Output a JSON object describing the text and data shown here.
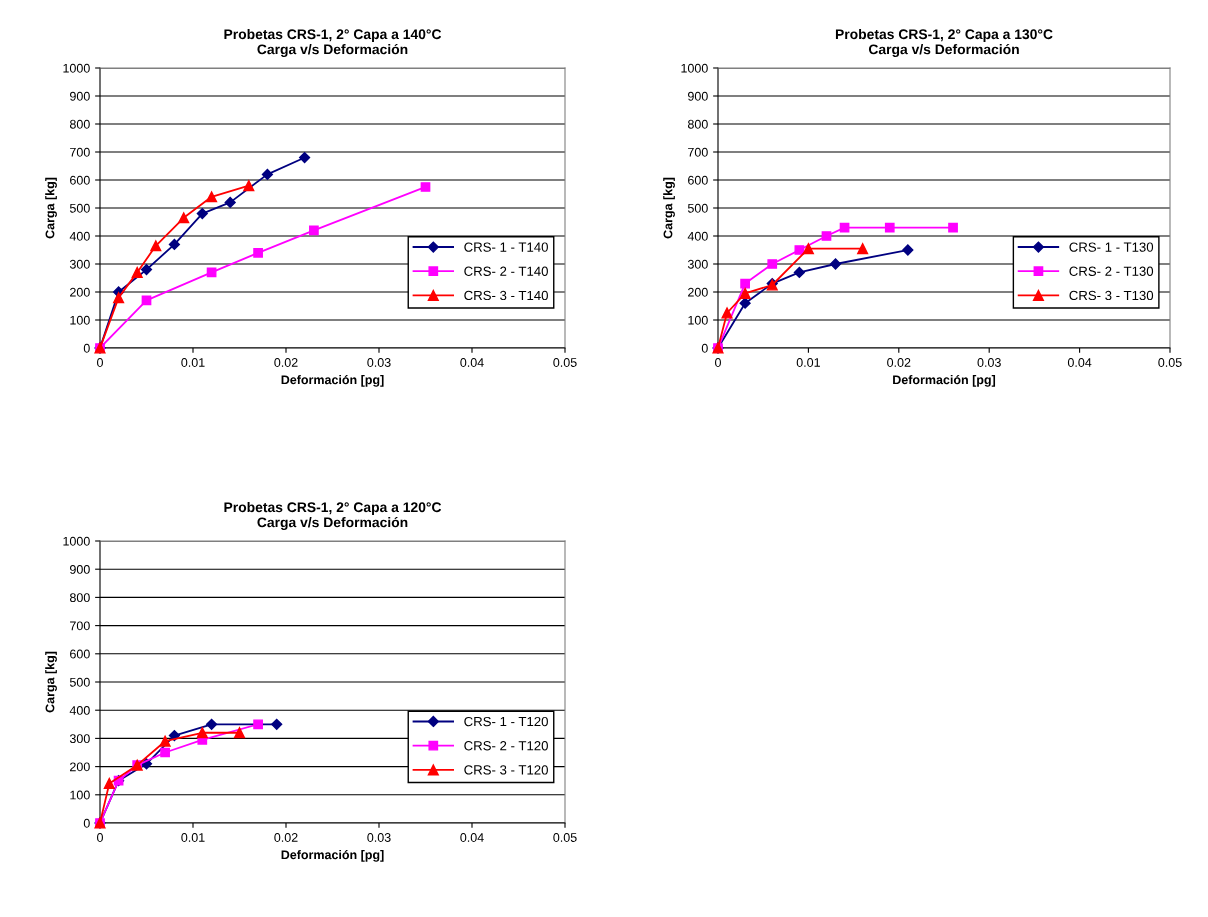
{
  "chart_data": [
    {
      "type": "line",
      "title": "Probetas CRS-1, 2° Capa a 140°C",
      "subtitle": "Carga v/s Deformación",
      "xlabel": "Deformación [pg]",
      "ylabel": "Carga [kg]",
      "xlim": [
        0,
        0.05
      ],
      "xticks": [
        0,
        0.01,
        0.02,
        0.03,
        0.04,
        0.05
      ],
      "ylim": [
        0,
        1000
      ],
      "yticks": [
        0,
        100,
        200,
        300,
        400,
        500,
        600,
        700,
        800,
        900,
        1000
      ],
      "grid": "y",
      "legend": "right",
      "series": [
        {
          "name": "CRS- 1 - T140",
          "color": "#000080",
          "marker": "diamond",
          "x": [
            0,
            0.002,
            0.005,
            0.008,
            0.011,
            0.014,
            0.018,
            0.022
          ],
          "values": [
            0,
            200,
            280,
            370,
            480,
            520,
            620,
            680
          ]
        },
        {
          "name": "CRS- 2 - T140",
          "color": "#ff00ff",
          "marker": "square",
          "x": [
            0,
            0.005,
            0.012,
            0.017,
            0.023,
            0.035
          ],
          "values": [
            0,
            170,
            270,
            340,
            420,
            575
          ]
        },
        {
          "name": "CRS- 3 - T140",
          "color": "#ff0000",
          "marker": "triangle",
          "x": [
            0,
            0.002,
            0.004,
            0.006,
            0.009,
            0.012,
            0.016
          ],
          "values": [
            0,
            180,
            270,
            365,
            465,
            540,
            580
          ]
        }
      ]
    },
    {
      "type": "line",
      "title": "Probetas CRS-1, 2° Capa a 130°C",
      "subtitle": "Carga v/s Deformación",
      "xlabel": "Deformación [pg]",
      "ylabel": "Carga [kg]",
      "xlim": [
        0,
        0.05
      ],
      "xticks": [
        0,
        0.01,
        0.02,
        0.03,
        0.04,
        0.05
      ],
      "ylim": [
        0,
        1000
      ],
      "yticks": [
        0,
        100,
        200,
        300,
        400,
        500,
        600,
        700,
        800,
        900,
        1000
      ],
      "grid": "y",
      "legend": "right",
      "series": [
        {
          "name": "CRS- 1 - T130",
          "color": "#000080",
          "marker": "diamond",
          "x": [
            0,
            0.003,
            0.006,
            0.009,
            0.013,
            0.021
          ],
          "values": [
            0,
            160,
            230,
            270,
            300,
            350
          ]
        },
        {
          "name": "CRS- 2 - T130",
          "color": "#ff00ff",
          "marker": "square",
          "x": [
            0,
            0.003,
            0.006,
            0.009,
            0.012,
            0.014,
            0.019,
            0.026
          ],
          "values": [
            0,
            230,
            300,
            350,
            400,
            430,
            430,
            430
          ]
        },
        {
          "name": "CRS- 3 - T130",
          "color": "#ff0000",
          "marker": "triangle",
          "x": [
            0,
            0.001,
            0.003,
            0.006,
            0.01,
            0.016
          ],
          "values": [
            0,
            125,
            195,
            225,
            355,
            355
          ]
        }
      ]
    },
    {
      "type": "line",
      "title": "Probetas CRS-1, 2° Capa a 120°C",
      "subtitle": "Carga v/s Deformación",
      "xlabel": "Deformación [pg]",
      "ylabel": "Carga [kg]",
      "xlim": [
        0,
        0.05
      ],
      "xticks": [
        0,
        0.01,
        0.02,
        0.03,
        0.04,
        0.05
      ],
      "ylim": [
        0,
        1000
      ],
      "yticks": [
        0,
        100,
        200,
        300,
        400,
        500,
        600,
        700,
        800,
        900,
        1000
      ],
      "grid": "y",
      "legend": "right",
      "series": [
        {
          "name": "CRS- 1 - T120",
          "color": "#000080",
          "marker": "diamond",
          "x": [
            0,
            0.002,
            0.005,
            0.008,
            0.012,
            0.019
          ],
          "values": [
            0,
            150,
            210,
            310,
            350,
            350
          ]
        },
        {
          "name": "CRS- 2 - T120",
          "color": "#ff00ff",
          "marker": "square",
          "x": [
            0,
            0.002,
            0.004,
            0.007,
            0.011,
            0.017
          ],
          "values": [
            0,
            150,
            205,
            250,
            295,
            350
          ]
        },
        {
          "name": "CRS- 3 - T120",
          "color": "#ff0000",
          "marker": "triangle",
          "x": [
            0,
            0.001,
            0.004,
            0.007,
            0.011,
            0.015
          ],
          "values": [
            0,
            140,
            205,
            290,
            320,
            320
          ]
        }
      ]
    }
  ]
}
